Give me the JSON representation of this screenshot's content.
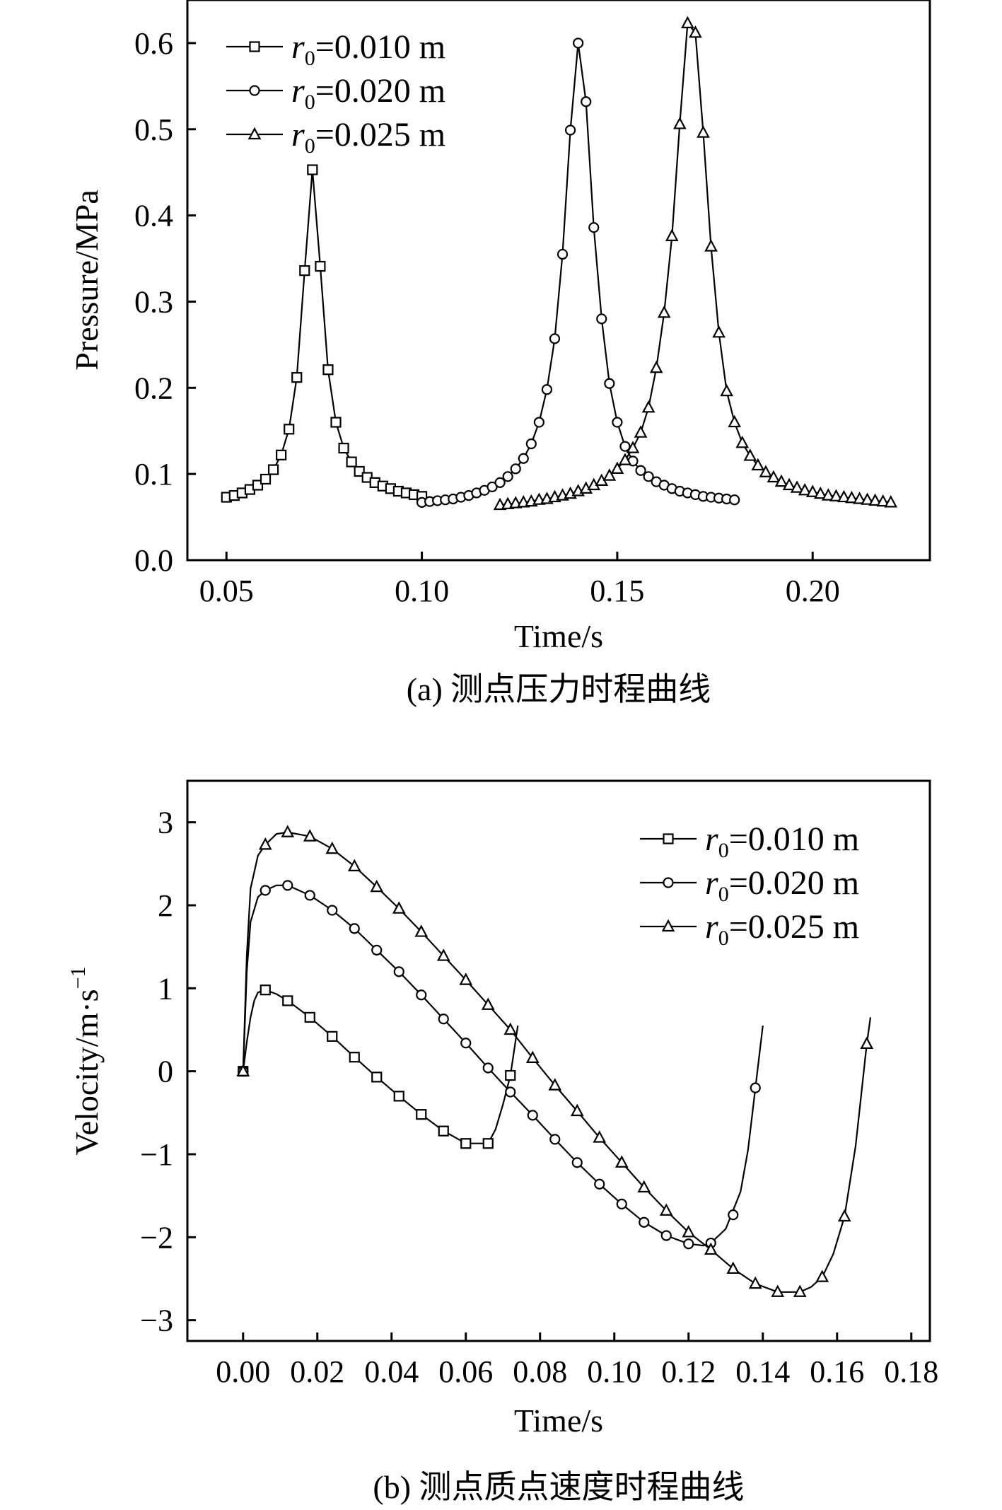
{
  "chart_data": [
    {
      "type": "line",
      "caption": "(a) 测点压力时程曲线",
      "xlabel": "Time/s",
      "ylabel": "Pressure/MPa",
      "xlim": [
        0.04,
        0.23
      ],
      "ylim": [
        0.0,
        0.65
      ],
      "xticks": [
        0.05,
        0.1,
        0.15,
        0.2
      ],
      "xtick_labels": [
        "0.05",
        "0.10",
        "0.15",
        "0.20"
      ],
      "yticks": [
        0.0,
        0.1,
        0.2,
        0.3,
        0.4,
        0.5,
        0.6
      ],
      "ytick_labels": [
        "0.0",
        "0.1",
        "0.2",
        "0.3",
        "0.4",
        "0.5",
        "0.6"
      ],
      "legend_position": "top-left",
      "series": [
        {
          "name": "r0=0.010 m",
          "symbol": "r",
          "subscript": "0",
          "value_text": "=0.010 m",
          "marker": "square",
          "x": [
            0.05,
            0.052,
            0.054,
            0.056,
            0.058,
            0.06,
            0.062,
            0.064,
            0.066,
            0.068,
            0.07,
            0.072,
            0.074,
            0.076,
            0.078,
            0.08,
            0.082,
            0.084,
            0.086,
            0.088,
            0.09,
            0.092,
            0.094,
            0.096,
            0.098,
            0.1
          ],
          "y": [
            0.073,
            0.075,
            0.078,
            0.082,
            0.087,
            0.094,
            0.105,
            0.122,
            0.152,
            0.212,
            0.336,
            0.453,
            0.341,
            0.221,
            0.16,
            0.13,
            0.114,
            0.103,
            0.096,
            0.09,
            0.086,
            0.083,
            0.08,
            0.078,
            0.076,
            0.074
          ]
        },
        {
          "name": "r0=0.020 m",
          "symbol": "r",
          "subscript": "0",
          "value_text": "=0.020 m",
          "marker": "circle",
          "x": [
            0.1,
            0.102,
            0.104,
            0.106,
            0.108,
            0.11,
            0.112,
            0.114,
            0.116,
            0.118,
            0.12,
            0.122,
            0.124,
            0.126,
            0.128,
            0.13,
            0.132,
            0.134,
            0.136,
            0.138,
            0.14,
            0.142,
            0.144,
            0.146,
            0.148,
            0.15,
            0.152,
            0.154,
            0.156,
            0.158,
            0.16,
            0.162,
            0.164,
            0.166,
            0.168,
            0.17,
            0.172,
            0.174,
            0.176,
            0.178,
            0.18
          ],
          "y": [
            0.067,
            0.068,
            0.069,
            0.07,
            0.071,
            0.073,
            0.075,
            0.078,
            0.081,
            0.085,
            0.09,
            0.097,
            0.106,
            0.118,
            0.135,
            0.16,
            0.198,
            0.257,
            0.355,
            0.499,
            0.6,
            0.532,
            0.386,
            0.28,
            0.205,
            0.16,
            0.132,
            0.115,
            0.104,
            0.097,
            0.091,
            0.087,
            0.083,
            0.08,
            0.078,
            0.076,
            0.074,
            0.073,
            0.072,
            0.071,
            0.07
          ]
        },
        {
          "name": "r0=0.025 m",
          "symbol": "r",
          "subscript": "0",
          "value_text": "=0.025 m",
          "marker": "triangle",
          "x": [
            0.12,
            0.122,
            0.124,
            0.126,
            0.128,
            0.13,
            0.132,
            0.134,
            0.136,
            0.138,
            0.14,
            0.142,
            0.144,
            0.146,
            0.148,
            0.15,
            0.152,
            0.154,
            0.156,
            0.158,
            0.16,
            0.162,
            0.164,
            0.166,
            0.168,
            0.17,
            0.172,
            0.174,
            0.176,
            0.178,
            0.18,
            0.182,
            0.184,
            0.186,
            0.188,
            0.19,
            0.192,
            0.194,
            0.196,
            0.198,
            0.2,
            0.202,
            0.204,
            0.206,
            0.208,
            0.21,
            0.212,
            0.214,
            0.216,
            0.218,
            0.22
          ],
          "y": [
            0.064,
            0.065,
            0.066,
            0.067,
            0.068,
            0.07,
            0.071,
            0.073,
            0.075,
            0.077,
            0.08,
            0.083,
            0.087,
            0.092,
            0.098,
            0.106,
            0.116,
            0.13,
            0.148,
            0.177,
            0.223,
            0.287,
            0.376,
            0.506,
            0.623,
            0.612,
            0.496,
            0.364,
            0.264,
            0.196,
            0.16,
            0.136,
            0.121,
            0.11,
            0.102,
            0.096,
            0.091,
            0.087,
            0.084,
            0.081,
            0.079,
            0.077,
            0.075,
            0.074,
            0.073,
            0.072,
            0.071,
            0.07,
            0.069,
            0.068,
            0.067
          ]
        }
      ]
    },
    {
      "type": "line",
      "caption": "(b) 测点质点速度时程曲线",
      "xlabel": "Time/s",
      "ylabel": "Velocity/m·s",
      "ylabel_superscript": "−1",
      "xlim": [
        -0.015,
        0.185
      ],
      "ylim": [
        -3.25,
        3.5
      ],
      "xticks": [
        0.0,
        0.02,
        0.04,
        0.06,
        0.08,
        0.1,
        0.12,
        0.14,
        0.16,
        0.18
      ],
      "xtick_labels": [
        "0.00",
        "0.02",
        "0.04",
        "0.06",
        "0.08",
        "0.10",
        "0.12",
        "0.14",
        "0.16",
        "0.18"
      ],
      "yticks": [
        -3,
        -2,
        -1,
        0,
        1,
        2,
        3
      ],
      "ytick_labels": [
        "−3",
        "−2",
        "−1",
        "0",
        "1",
        "2",
        "3"
      ],
      "legend_position": "top-right",
      "series": [
        {
          "name": "r0=0.010 m",
          "symbol": "r",
          "subscript": "0",
          "value_text": "=0.010 m",
          "marker": "square",
          "x": [
            0.0,
            0.006,
            0.012,
            0.018,
            0.024,
            0.03,
            0.036,
            0.042,
            0.048,
            0.054,
            0.06,
            0.066,
            0.072
          ],
          "y": [
            0.0,
            0.98,
            0.85,
            0.65,
            0.42,
            0.17,
            -0.07,
            -0.3,
            -0.52,
            -0.72,
            -0.87,
            -0.87,
            -0.05
          ],
          "curve_x": [
            0.0,
            0.001,
            0.002,
            0.003,
            0.004,
            0.006,
            0.009,
            0.012,
            0.018,
            0.024,
            0.03,
            0.036,
            0.042,
            0.048,
            0.054,
            0.06,
            0.066,
            0.068,
            0.07,
            0.072,
            0.074
          ],
          "curve_y": [
            0.0,
            0.35,
            0.65,
            0.85,
            0.95,
            0.98,
            0.93,
            0.85,
            0.65,
            0.42,
            0.17,
            -0.07,
            -0.3,
            -0.52,
            -0.72,
            -0.87,
            -0.87,
            -0.7,
            -0.4,
            -0.05,
            0.55
          ]
        },
        {
          "name": "r0=0.020 m",
          "symbol": "r",
          "subscript": "0",
          "value_text": "=0.020 m",
          "marker": "circle",
          "x": [
            0.0,
            0.006,
            0.012,
            0.018,
            0.024,
            0.03,
            0.036,
            0.042,
            0.048,
            0.054,
            0.06,
            0.066,
            0.072,
            0.078,
            0.084,
            0.09,
            0.096,
            0.102,
            0.108,
            0.114,
            0.12,
            0.126,
            0.132,
            0.138
          ],
          "y": [
            0.0,
            2.18,
            2.24,
            2.12,
            1.94,
            1.72,
            1.46,
            1.2,
            0.92,
            0.63,
            0.34,
            0.04,
            -0.25,
            -0.53,
            -0.82,
            -1.1,
            -1.36,
            -1.6,
            -1.82,
            -1.98,
            -2.08,
            -2.07,
            -1.73,
            -0.2
          ],
          "curve_x": [
            0.0,
            0.001,
            0.002,
            0.004,
            0.006,
            0.009,
            0.012,
            0.018,
            0.024,
            0.03,
            0.036,
            0.042,
            0.048,
            0.054,
            0.06,
            0.066,
            0.072,
            0.078,
            0.084,
            0.09,
            0.096,
            0.102,
            0.108,
            0.114,
            0.12,
            0.124,
            0.126,
            0.13,
            0.134,
            0.136,
            0.138,
            0.14
          ],
          "curve_y": [
            0.0,
            1.2,
            1.8,
            2.1,
            2.18,
            2.24,
            2.24,
            2.12,
            1.94,
            1.72,
            1.46,
            1.2,
            0.92,
            0.63,
            0.34,
            0.04,
            -0.25,
            -0.53,
            -0.82,
            -1.1,
            -1.36,
            -1.6,
            -1.82,
            -1.98,
            -2.08,
            -2.1,
            -2.07,
            -1.9,
            -1.45,
            -0.95,
            -0.2,
            0.55
          ]
        },
        {
          "name": "r0=0.025 m",
          "symbol": "r",
          "subscript": "0",
          "value_text": "=0.025 m",
          "marker": "triangle",
          "x": [
            0.0,
            0.006,
            0.012,
            0.018,
            0.024,
            0.03,
            0.036,
            0.042,
            0.048,
            0.054,
            0.06,
            0.066,
            0.072,
            0.078,
            0.084,
            0.09,
            0.096,
            0.102,
            0.108,
            0.114,
            0.12,
            0.126,
            0.132,
            0.138,
            0.144,
            0.15,
            0.156,
            0.162,
            0.168
          ],
          "y": [
            0.0,
            2.73,
            2.88,
            2.83,
            2.68,
            2.47,
            2.22,
            1.96,
            1.68,
            1.39,
            1.1,
            0.8,
            0.5,
            0.16,
            -0.17,
            -0.48,
            -0.8,
            -1.1,
            -1.4,
            -1.68,
            -1.94,
            -2.15,
            -2.38,
            -2.56,
            -2.66,
            -2.66,
            -2.48,
            -1.75,
            0.33
          ],
          "curve_x": [
            0.0,
            0.001,
            0.002,
            0.004,
            0.006,
            0.009,
            0.012,
            0.018,
            0.024,
            0.03,
            0.036,
            0.042,
            0.048,
            0.054,
            0.06,
            0.066,
            0.072,
            0.078,
            0.084,
            0.09,
            0.096,
            0.102,
            0.108,
            0.114,
            0.12,
            0.126,
            0.132,
            0.138,
            0.144,
            0.15,
            0.153,
            0.156,
            0.159,
            0.162,
            0.165,
            0.168,
            0.169
          ],
          "curve_y": [
            0.0,
            1.4,
            2.2,
            2.6,
            2.73,
            2.86,
            2.88,
            2.83,
            2.68,
            2.47,
            2.22,
            1.96,
            1.68,
            1.39,
            1.1,
            0.8,
            0.5,
            0.16,
            -0.17,
            -0.48,
            -0.8,
            -1.1,
            -1.4,
            -1.68,
            -1.94,
            -2.15,
            -2.38,
            -2.56,
            -2.66,
            -2.66,
            -2.6,
            -2.48,
            -2.2,
            -1.75,
            -0.9,
            0.33,
            0.65
          ]
        }
      ]
    }
  ]
}
